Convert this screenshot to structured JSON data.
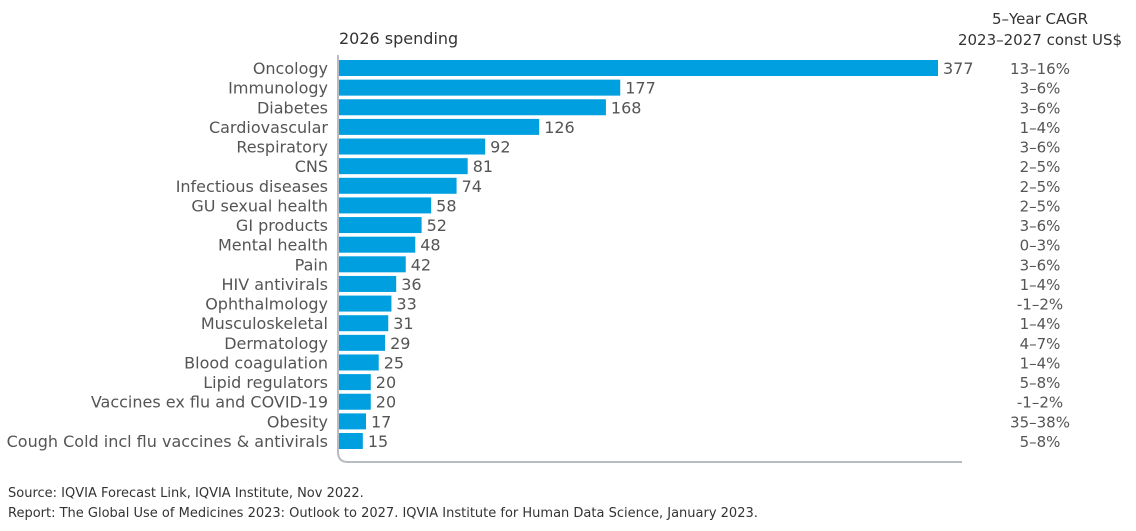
{
  "chart_data": {
    "type": "bar",
    "orientation": "horizontal",
    "title": "2026 spending",
    "side_column_header": [
      "5–Year CAGR",
      "2023–2027 const US$"
    ],
    "categories": [
      "Oncology",
      "Immunology",
      "Diabetes",
      "Cardiovascular",
      "Respiratory",
      "CNS",
      "Infectious diseases",
      "GU sexual health",
      "GI products",
      "Mental health",
      "Pain",
      "HIV antivirals",
      "Ophthalmology",
      "Musculoskeletal",
      "Dermatology",
      "Blood coagulation",
      "Lipid regulators",
      "Vaccines ex flu and COVID-19",
      "Obesity",
      "Cough Cold incl flu vaccines & antivirals"
    ],
    "values": [
      377,
      177,
      168,
      126,
      92,
      81,
      74,
      58,
      52,
      48,
      42,
      36,
      33,
      31,
      29,
      25,
      20,
      20,
      17,
      15
    ],
    "cagr": [
      "13–16%",
      "3–6%",
      "3–6%",
      "1–4%",
      "3–6%",
      "2–5%",
      "2–5%",
      "2–5%",
      "3–6%",
      "0–3%",
      "3–6%",
      "1–4%",
      "-1–2%",
      "1–4%",
      "4–7%",
      "1–4%",
      "5–8%",
      "-1–2%",
      "35–38%",
      "5–8%"
    ],
    "xlim": [
      0,
      392
    ],
    "grid": false,
    "data_labels": true,
    "bar_color": "#009fe0",
    "text_color": "#555555",
    "axis_color": "#b8bcc2"
  },
  "source": "Source: IQVIA Forecast Link, IQVIA Institute, Nov 2022.",
  "report": "Report: The Global Use of Medicines 2023: Outlook to 2027. IQVIA Institute for Human Data Science, January 2023."
}
